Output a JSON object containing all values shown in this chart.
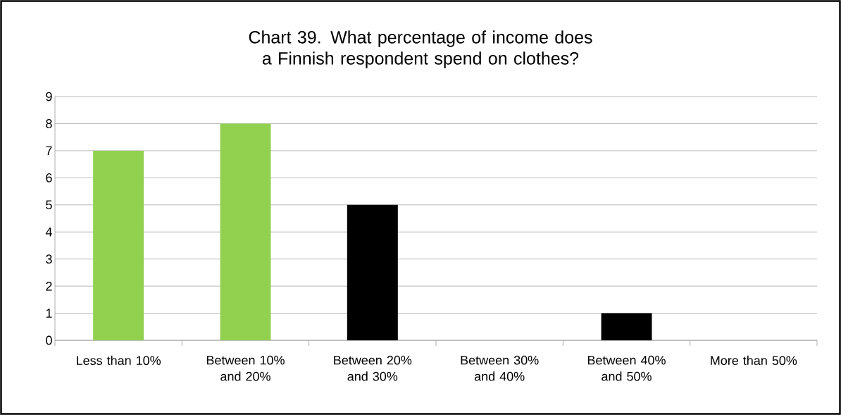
{
  "chart_data": {
    "type": "bar",
    "title": "Chart 39. What percentage of income does a Finnish respondent spend on clothes?",
    "categories": [
      "Less than 10%",
      "Between 10% and 20%",
      "Between 20% and 30%",
      "Between 30% and 40%",
      "Between 40% and 50%",
      "More than 50%"
    ],
    "values": [
      7,
      8,
      5,
      0,
      1,
      0
    ],
    "colors": [
      "#92d050",
      "#92d050",
      "#000000",
      "#000000",
      "#000000",
      "#000000"
    ],
    "ylim": [
      0,
      9
    ],
    "yticks": [
      0,
      1,
      2,
      3,
      4,
      5,
      6,
      7,
      8,
      9
    ],
    "grid": "y"
  }
}
